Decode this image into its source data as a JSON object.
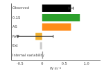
{
  "chart_data": {
    "type": "bar",
    "orientation": "horizontal",
    "categories": [
      "Observed",
      "0.1S",
      "AS",
      "NAT",
      "Ext",
      "Internal variability"
    ],
    "values": [
      0.65,
      0.85,
      0.65,
      -0.15,
      -0.05,
      0.02
    ],
    "errors": [
      0.05,
      null,
      null,
      0.4,
      null,
      null
    ],
    "colors": [
      "#000000",
      "#2ca02c",
      "#ff8c1a",
      "#f0b030",
      "#cccccc",
      "#999999"
    ],
    "xlabel": "W m⁻²",
    "xlim": [
      -0.7,
      1.3
    ],
    "xticks": [
      -0.5,
      0,
      0.5,
      1
    ],
    "grid": false
  }
}
